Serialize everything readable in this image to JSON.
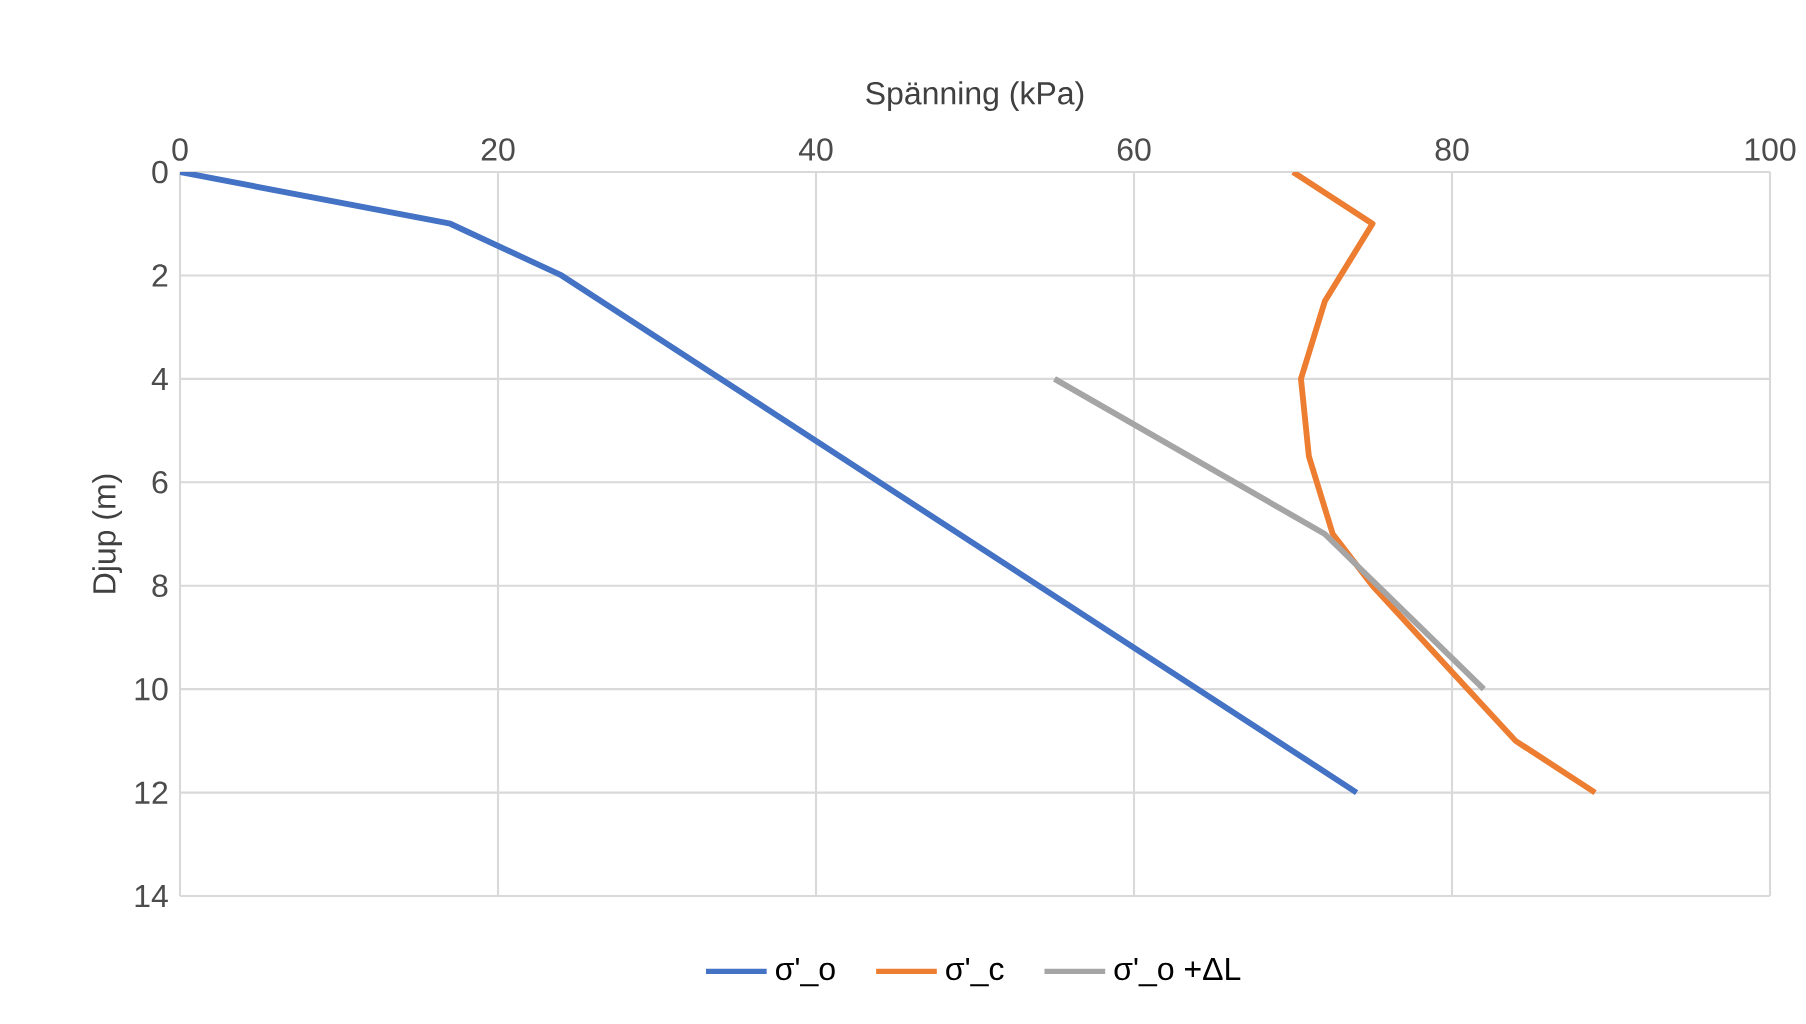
{
  "chart_data": {
    "type": "line",
    "xlabel": "Spänning (kPa)",
    "ylabel": "Djup (m)",
    "xlim": [
      0,
      100
    ],
    "xticks": [
      0,
      20,
      40,
      60,
      80,
      100
    ],
    "ylim": [
      14,
      0
    ],
    "yticks": [
      0,
      2,
      4,
      6,
      8,
      10,
      12,
      14
    ],
    "grid": true,
    "legend": "bottom",
    "series": [
      {
        "name": "σ'_o",
        "color": "#4472c4",
        "x": [
          0,
          17,
          24,
          74
        ],
        "values": [
          0,
          1,
          2,
          12
        ]
      },
      {
        "name": "σ'_c",
        "color": "#ed7d31",
        "x": [
          70,
          75,
          72,
          70.5,
          71,
          72.5,
          75,
          78,
          81,
          84,
          89
        ],
        "values": [
          0,
          1,
          2.5,
          4,
          5.5,
          7,
          8,
          9,
          10,
          11,
          12
        ]
      },
      {
        "name": "σ'_o +ΔL",
        "color": "#a5a5a5",
        "x": [
          55,
          72,
          82
        ],
        "values": [
          4,
          7,
          10
        ]
      }
    ]
  }
}
